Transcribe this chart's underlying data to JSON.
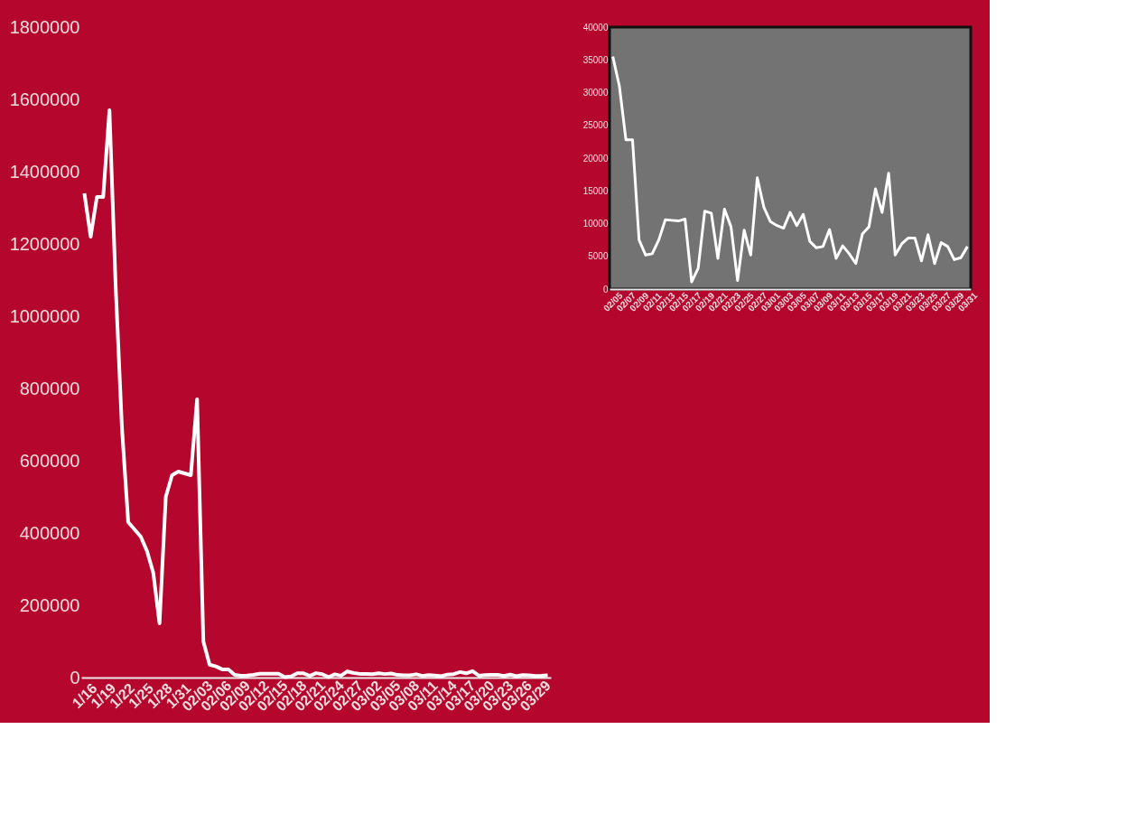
{
  "chart_data": [
    {
      "type": "line",
      "categories": [
        "1/16",
        null,
        null,
        "1/19",
        null,
        null,
        "1/22",
        null,
        null,
        "1/25",
        null,
        null,
        "1/28",
        null,
        null,
        "1/31",
        null,
        null,
        "02/03",
        null,
        null,
        "02/06",
        null,
        null,
        "02/09",
        null,
        null,
        "02/12",
        null,
        null,
        "02/15",
        null,
        null,
        "02/18",
        null,
        null,
        "02/21",
        null,
        null,
        "02/24",
        null,
        null,
        "02/27",
        null,
        null,
        "03/02",
        null,
        null,
        "03/05",
        null,
        null,
        "03/08",
        null,
        null,
        "03/11",
        null,
        null,
        "03/14",
        null,
        null,
        "03/17",
        null,
        null,
        "03/20",
        null,
        null,
        "03/23",
        null,
        null,
        "03/26",
        null,
        null,
        "03/29",
        null,
        null
      ],
      "series": [
        {
          "color": "#ffffff",
          "values": [
            1340000,
            1220000,
            1330000,
            1330000,
            1570000,
            1080000,
            690000,
            430000,
            410000,
            390000,
            350000,
            290000,
            150000,
            500000,
            560000,
            570000,
            565000,
            560000,
            770000,
            100000,
            35500,
            31000,
            22800,
            22800,
            7500,
            5200,
            5400,
            7500,
            10600,
            10500,
            10400,
            10700,
            1100,
            3200,
            11900,
            11600,
            4700,
            12200,
            9500,
            1300,
            9000,
            5200,
            17000,
            12500,
            10300,
            9700,
            9300,
            11700,
            9700,
            11400,
            7300,
            6300,
            6500,
            9100,
            4700,
            6600,
            5400,
            3900,
            8400,
            9500,
            15300,
            11700,
            17700,
            5200,
            6900,
            7800,
            7800,
            4300,
            8300,
            3900,
            7100,
            6500,
            4500,
            4800,
            6500
          ]
        }
      ],
      "ylim": [
        0,
        1800000
      ],
      "yticks": [
        0,
        200000,
        400000,
        600000,
        800000,
        1000000,
        1200000,
        1400000,
        1600000,
        1800000
      ],
      "grid": false,
      "marker": "none",
      "line_style": "solid"
    },
    {
      "type": "line",
      "categories": [
        "02/05",
        null,
        "02/07",
        null,
        "02/09",
        null,
        "02/11",
        null,
        "02/13",
        null,
        "02/15",
        null,
        "02/17",
        null,
        "02/19",
        null,
        "02/21",
        null,
        "02/23",
        null,
        "02/25",
        null,
        "02/27",
        null,
        "03/01",
        null,
        "03/03",
        null,
        "03/05",
        null,
        "03/07",
        null,
        "03/09",
        null,
        "03/11",
        null,
        "03/13",
        null,
        "03/15",
        null,
        "03/17",
        null,
        "03/19",
        null,
        "03/21",
        null,
        "03/23",
        null,
        "03/25",
        null,
        "03/27",
        null,
        "03/29",
        null,
        "03/31"
      ],
      "series": [
        {
          "color": "#ffffff",
          "values": [
            35500,
            31000,
            22800,
            22800,
            7500,
            5200,
            5400,
            7500,
            10600,
            10500,
            10400,
            10700,
            1100,
            3200,
            11900,
            11600,
            4700,
            12200,
            9500,
            1300,
            9000,
            5200,
            17000,
            12500,
            10300,
            9700,
            9300,
            11700,
            9700,
            11400,
            7300,
            6300,
            6500,
            9100,
            4700,
            6600,
            5400,
            3900,
            8400,
            9500,
            15300,
            11700,
            17700,
            5200,
            6900,
            7800,
            7800,
            4300,
            8300,
            3900,
            7100,
            6500,
            4500,
            4800,
            6500
          ]
        }
      ],
      "ylim": [
        0,
        40000
      ],
      "yticks": [
        0,
        5000,
        10000,
        15000,
        20000,
        25000,
        30000,
        35000,
        40000
      ],
      "grid": false,
      "marker": "none",
      "line_style": "solid"
    }
  ]
}
